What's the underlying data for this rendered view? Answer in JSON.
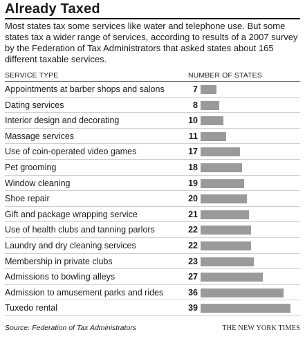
{
  "chart_data": {
    "type": "bar",
    "title": "Already Taxed",
    "subtitle": "Most states tax some services like water and telephone use. But some states tax a wider range of services, according to results of a 2007 survey by the Federation of Tax Administrators that asked states about 165 different taxable services.",
    "category_header": "SERVICE TYPE",
    "value_header": "NUMBER OF STATES",
    "orientation": "horizontal",
    "bar_color": "#9a9a9a",
    "categories": [
      "Appointments at barber shops and salons",
      "Dating services",
      "Interior design and decorating",
      "Massage services",
      "Use of coin-operated video games",
      "Pet grooming",
      "Window cleaning",
      "Shoe repair",
      "Gift and package wrapping service",
      "Use of health clubs and tanning parlors",
      "Laundry and dry cleaning services",
      "Membership in private clubs",
      "Admissions to bowling alleys",
      "Admission to amusement parks and rides",
      "Tuxedo rental"
    ],
    "values": [
      7,
      8,
      10,
      11,
      17,
      18,
      19,
      20,
      21,
      22,
      22,
      23,
      27,
      36,
      39
    ],
    "xlim": [
      0,
      39
    ],
    "grid": false
  },
  "source": "Source: Federation of Tax Administrators",
  "credit": "THE NEW YORK TIMES"
}
